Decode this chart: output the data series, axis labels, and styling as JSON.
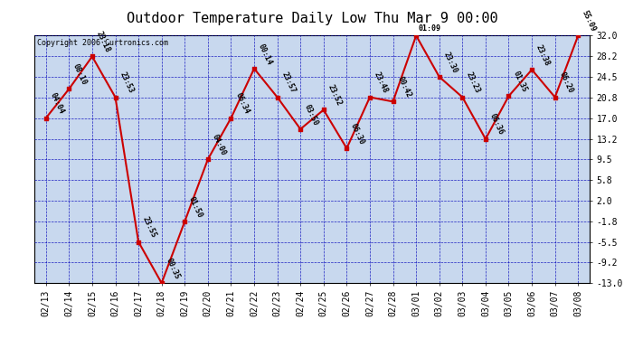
{
  "title": "Outdoor Temperature Daily Low Thu Mar 9 00:00",
  "copyright": "Copyright 2006 Curtronics.com",
  "x_labels": [
    "02/13",
    "02/14",
    "02/15",
    "02/16",
    "02/17",
    "02/18",
    "02/19",
    "02/20",
    "02/21",
    "02/22",
    "02/23",
    "02/24",
    "02/25",
    "02/26",
    "02/27",
    "02/28",
    "03/01",
    "03/02",
    "03/03",
    "03/04",
    "03/05",
    "03/06",
    "03/07",
    "03/08"
  ],
  "y_values": [
    17.0,
    22.3,
    28.2,
    20.8,
    -5.5,
    -13.0,
    -1.8,
    9.5,
    17.0,
    26.0,
    20.8,
    15.0,
    18.5,
    11.5,
    20.8,
    20.0,
    32.0,
    24.5,
    20.8,
    13.2,
    21.0,
    25.8,
    20.8,
    32.0
  ],
  "point_labels": [
    "04:04",
    "08:10",
    "23:18",
    "23:53",
    "23:55",
    "00:35",
    "01:50",
    "04:00",
    "06:34",
    "00:14",
    "23:57",
    "03:50",
    "23:52",
    "06:30",
    "23:48",
    "00:42",
    "01:09",
    "23:30",
    "23:23",
    "06:36",
    "01:35",
    "23:38",
    "06:20",
    "55:09"
  ],
  "label_above_indices": [
    16
  ],
  "ylim_min": -13.0,
  "ylim_max": 32.0,
  "ytick_values": [
    32.0,
    28.2,
    24.5,
    20.8,
    17.0,
    13.2,
    9.5,
    5.8,
    2.0,
    -1.8,
    -5.5,
    -9.2,
    -13.0
  ],
  "ytick_labels": [
    "32.0",
    "28.2",
    "24.5",
    "20.8",
    "17.0",
    "13.2",
    "9.5",
    "5.8",
    "2.0",
    "-1.8",
    "-5.5",
    "-9.2",
    "-13.0"
  ],
  "line_color": "#cc0000",
  "bg_color": "#c8d8ee",
  "grid_color": "#0000bb",
  "outer_bg": "#ffffff",
  "title_fontsize": 11,
  "tick_fontsize": 7,
  "label_fontsize": 6,
  "copyright_fontsize": 6
}
